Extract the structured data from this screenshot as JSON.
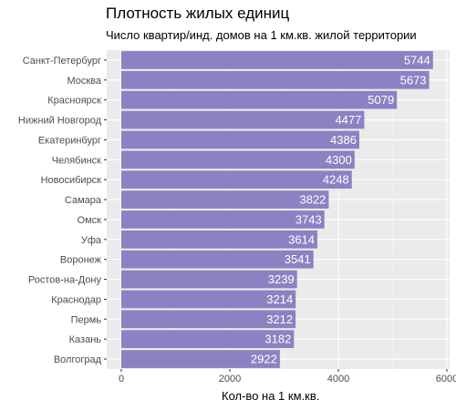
{
  "chart_data": {
    "type": "bar",
    "orientation": "horizontal",
    "title": "Плотность жилых единиц",
    "subtitle": "Число квартир/инд. домов на 1 км.кв. жилой территории",
    "xlabel": "Кол-во на 1 км.кв.",
    "ylabel": "",
    "xlim": [
      0,
      6000
    ],
    "xticks": [
      0,
      2000,
      4000,
      6000
    ],
    "grid": true,
    "legend": "none",
    "bar_color": "#8a82c2",
    "panel_color": "#ebebeb",
    "categories": [
      "Санкт-Петербург",
      "Москва",
      "Красноярск",
      "Нижний Новгород",
      "Екатеринбург",
      "Челябинск",
      "Новосибирск",
      "Самара",
      "Омск",
      "Уфа",
      "Воронеж",
      "Ростов-на-Дону",
      "Краснодар",
      "Пермь",
      "Казань",
      "Волгоград"
    ],
    "values": [
      5744,
      5673,
      5079,
      4477,
      4386,
      4300,
      4248,
      3822,
      3743,
      3614,
      3541,
      3239,
      3214,
      3212,
      3182,
      2922
    ]
  }
}
